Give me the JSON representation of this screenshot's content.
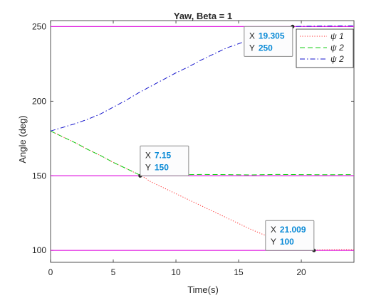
{
  "chart_data": {
    "type": "line",
    "title": "Yaw, Beta = 1",
    "xlabel": "Time(s)",
    "ylabel": "Angle (deg)",
    "xlim": [
      0,
      24.2
    ],
    "ylim": [
      92,
      254
    ],
    "x_ticks": [
      0,
      5,
      10,
      15,
      20
    ],
    "y_ticks": [
      100,
      150,
      200,
      250
    ],
    "grid": false,
    "legend_position": "top-right",
    "reference_lines": [
      {
        "y": 250,
        "color": "#e01ee0"
      },
      {
        "y": 150,
        "color": "#e01ee0"
      },
      {
        "y": 100,
        "color": "#e01ee0"
      }
    ],
    "series": [
      {
        "name": "ψ 1",
        "color": "#ff2a2a",
        "style": "dotted",
        "x": [
          0,
          1,
          2,
          3,
          4,
          5,
          6,
          7,
          7.15,
          8,
          10,
          12,
          14,
          16,
          18,
          20,
          21.009,
          22,
          24.2
        ],
        "y": [
          180,
          176,
          172,
          167.5,
          163.5,
          159,
          155,
          151,
          150.5,
          146,
          138,
          130,
          122,
          114,
          107,
          102,
          100.2,
          100.4,
          100.5
        ]
      },
      {
        "name": "ψ 2",
        "color": "#13cc13",
        "style": "dashed",
        "x": [
          0,
          1,
          2,
          3,
          4,
          5,
          6,
          7,
          7.15,
          8,
          10,
          12,
          14,
          16,
          18,
          20,
          22,
          24.2
        ],
        "y": [
          180,
          176,
          172,
          167.5,
          163.5,
          159,
          155,
          151,
          150.5,
          150.8,
          150.7,
          150.9,
          150.8,
          150.6,
          150.9,
          150.8,
          150.7,
          150.8
        ]
      },
      {
        "name": "ψ 2",
        "color": "#1616cc",
        "style": "dashdot",
        "x": [
          0,
          1,
          2,
          3,
          4,
          5,
          6,
          7,
          8,
          9,
          10,
          11,
          12,
          13,
          14,
          15,
          16,
          17,
          18,
          19.305,
          20,
          22,
          24.2
        ],
        "y": [
          180,
          182.5,
          185,
          188,
          191.5,
          196,
          200.5,
          205.5,
          210,
          214.5,
          219,
          223,
          227.5,
          231.5,
          235.5,
          238.5,
          241.5,
          245,
          247.5,
          250,
          250.2,
          250.4,
          250.5
        ]
      }
    ],
    "datatips": [
      {
        "x_label": "X",
        "y_label": "Y",
        "x_value": "19.305",
        "y_value": "250",
        "x": 19.305,
        "y": 250,
        "anchor": "bottom-left"
      },
      {
        "x_label": "X",
        "y_label": "Y",
        "x_value": "7.15",
        "y_value": "150",
        "x": 7.15,
        "y": 150,
        "anchor": "top-right"
      },
      {
        "x_label": "X",
        "y_label": "Y",
        "x_value": "21.009",
        "y_value": "100",
        "x": 21.009,
        "y": 100,
        "anchor": "top-left"
      }
    ]
  }
}
